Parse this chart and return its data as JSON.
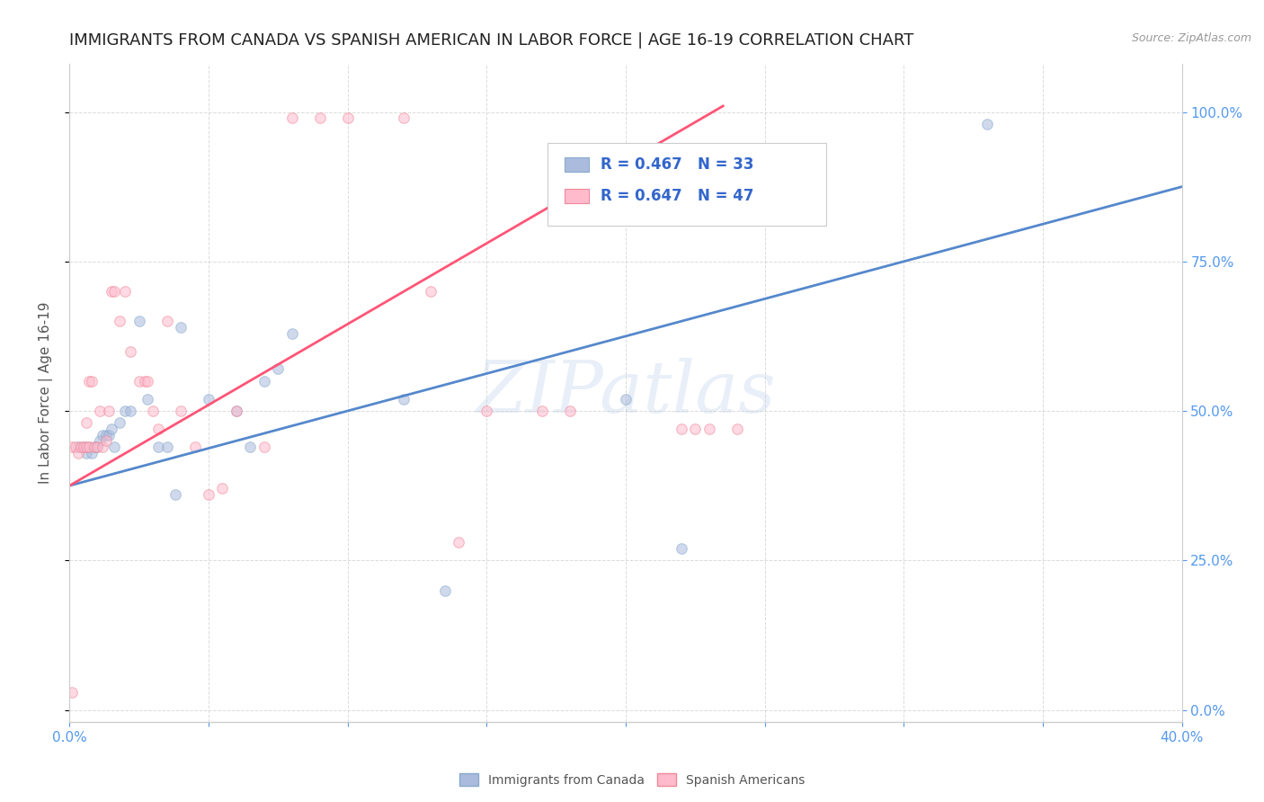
{
  "title": "IMMIGRANTS FROM CANADA VS SPANISH AMERICAN IN LABOR FORCE | AGE 16-19 CORRELATION CHART",
  "source": "Source: ZipAtlas.com",
  "ylabel": "In Labor Force | Age 16-19",
  "xlim": [
    0.0,
    0.4
  ],
  "ylim": [
    -0.02,
    1.08
  ],
  "yticks": [
    0.0,
    0.25,
    0.5,
    0.75,
    1.0
  ],
  "xtick_labels_show": [
    "0.0%",
    "40.0%"
  ],
  "legend_labels": [
    "Immigrants from Canada",
    "Spanish Americans"
  ],
  "legend_r_n": [
    {
      "R": "0.467",
      "N": "33"
    },
    {
      "R": "0.647",
      "N": "47"
    }
  ],
  "blue_scatter_x": [
    0.003,
    0.005,
    0.006,
    0.007,
    0.008,
    0.009,
    0.01,
    0.011,
    0.012,
    0.013,
    0.014,
    0.015,
    0.016,
    0.018,
    0.02,
    0.022,
    0.025,
    0.028,
    0.032,
    0.035,
    0.038,
    0.04,
    0.05,
    0.06,
    0.065,
    0.07,
    0.075,
    0.08,
    0.12,
    0.135,
    0.2,
    0.22,
    0.33
  ],
  "blue_scatter_y": [
    0.44,
    0.44,
    0.43,
    0.44,
    0.43,
    0.44,
    0.44,
    0.45,
    0.46,
    0.46,
    0.46,
    0.47,
    0.44,
    0.48,
    0.5,
    0.5,
    0.65,
    0.52,
    0.44,
    0.44,
    0.36,
    0.64,
    0.52,
    0.5,
    0.44,
    0.55,
    0.57,
    0.63,
    0.52,
    0.2,
    0.52,
    0.27,
    0.98
  ],
  "pink_scatter_x": [
    0.001,
    0.002,
    0.003,
    0.004,
    0.005,
    0.006,
    0.006,
    0.007,
    0.007,
    0.008,
    0.009,
    0.01,
    0.011,
    0.012,
    0.013,
    0.014,
    0.015,
    0.016,
    0.018,
    0.02,
    0.022,
    0.025,
    0.027,
    0.028,
    0.03,
    0.032,
    0.035,
    0.04,
    0.045,
    0.05,
    0.055,
    0.06,
    0.07,
    0.08,
    0.09,
    0.1,
    0.12,
    0.13,
    0.14,
    0.15,
    0.17,
    0.18,
    0.22,
    0.225,
    0.23,
    0.24,
    0.001
  ],
  "pink_scatter_y": [
    0.44,
    0.44,
    0.43,
    0.44,
    0.44,
    0.44,
    0.48,
    0.44,
    0.55,
    0.55,
    0.44,
    0.44,
    0.5,
    0.44,
    0.45,
    0.5,
    0.7,
    0.7,
    0.65,
    0.7,
    0.6,
    0.55,
    0.55,
    0.55,
    0.5,
    0.47,
    0.65,
    0.5,
    0.44,
    0.36,
    0.37,
    0.5,
    0.44,
    0.99,
    0.99,
    0.99,
    0.99,
    0.7,
    0.28,
    0.5,
    0.5,
    0.5,
    0.47,
    0.47,
    0.47,
    0.47,
    0.03
  ],
  "blue_line_x": [
    0.0,
    0.4
  ],
  "blue_line_y": [
    0.375,
    0.875
  ],
  "pink_line_x": [
    0.0,
    0.235
  ],
  "pink_line_y": [
    0.375,
    1.01
  ],
  "blue_line_color": "#5588cc",
  "pink_line_color": "#ff5577",
  "blue_marker_color": "#aabbdd",
  "blue_edge_color": "#88aacc",
  "pink_marker_color": "#ffbbcc",
  "pink_edge_color": "#ee8899",
  "watermark": "ZIPatlas",
  "background_color": "#ffffff",
  "grid_color": "#cccccc",
  "title_fontsize": 13,
  "axis_label_fontsize": 11,
  "tick_fontsize": 11,
  "scatter_size": 70,
  "scatter_alpha": 0.55
}
